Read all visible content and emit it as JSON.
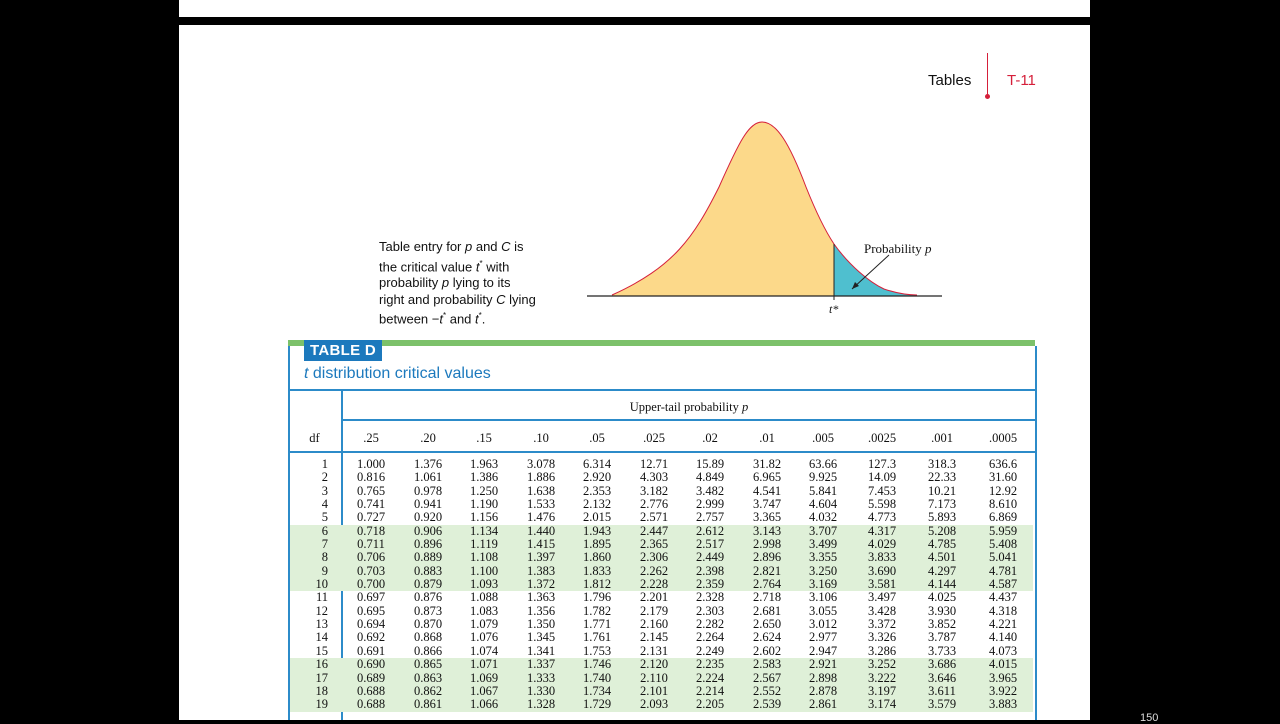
{
  "header": {
    "section": "Tables",
    "page_number": "T-11"
  },
  "caption": {
    "l1a": "Table entry for ",
    "l1p": "p",
    "l1b": " and ",
    "l1c": "C",
    "l1d": " is",
    "l2a": "the critical value ",
    "l2t": "t",
    "l2s": "*",
    "l2b": " with",
    "l3a": "probability ",
    "l3p": "p",
    "l3b": " lying to its",
    "l4a": "right and probability ",
    "l4c": "C",
    "l4b": " lying",
    "l5a": "between −",
    "l5t1": "t",
    "l5s1": "*",
    "l5b": " and ",
    "l5t2": "t",
    "l5s2": "*",
    "l5c": "."
  },
  "figure": {
    "prob_label": "Probability ",
    "prob_var": "p",
    "tstar": "t*"
  },
  "table": {
    "label": "TABLE D",
    "subtitle_var": "t",
    "subtitle": " distribution critical values",
    "upper_label": "Upper-tail probability ",
    "upper_var": "p",
    "df_header": "df",
    "columns": [
      ".25",
      ".20",
      ".15",
      ".10",
      ".05",
      ".025",
      ".02",
      ".01",
      ".005",
      ".0025",
      ".001",
      ".0005"
    ],
    "rows": [
      {
        "df": "1",
        "v": [
          "1.000",
          "1.376",
          "1.963",
          "3.078",
          "6.314",
          "12.71",
          "15.89",
          "31.82",
          "63.66",
          "127.3",
          "318.3",
          "636.6"
        ]
      },
      {
        "df": "2",
        "v": [
          "0.816",
          "1.061",
          "1.386",
          "1.886",
          "2.920",
          "4.303",
          "4.849",
          "6.965",
          "9.925",
          "14.09",
          "22.33",
          "31.60"
        ]
      },
      {
        "df": "3",
        "v": [
          "0.765",
          "0.978",
          "1.250",
          "1.638",
          "2.353",
          "3.182",
          "3.482",
          "4.541",
          "5.841",
          "7.453",
          "10.21",
          "12.92"
        ]
      },
      {
        "df": "4",
        "v": [
          "0.741",
          "0.941",
          "1.190",
          "1.533",
          "2.132",
          "2.776",
          "2.999",
          "3.747",
          "4.604",
          "5.598",
          "7.173",
          "8.610"
        ]
      },
      {
        "df": "5",
        "v": [
          "0.727",
          "0.920",
          "1.156",
          "1.476",
          "2.015",
          "2.571",
          "2.757",
          "3.365",
          "4.032",
          "4.773",
          "5.893",
          "6.869"
        ]
      },
      {
        "df": "6",
        "v": [
          "0.718",
          "0.906",
          "1.134",
          "1.440",
          "1.943",
          "2.447",
          "2.612",
          "3.143",
          "3.707",
          "4.317",
          "5.208",
          "5.959"
        ]
      },
      {
        "df": "7",
        "v": [
          "0.711",
          "0.896",
          "1.119",
          "1.415",
          "1.895",
          "2.365",
          "2.517",
          "2.998",
          "3.499",
          "4.029",
          "4.785",
          "5.408"
        ]
      },
      {
        "df": "8",
        "v": [
          "0.706",
          "0.889",
          "1.108",
          "1.397",
          "1.860",
          "2.306",
          "2.449",
          "2.896",
          "3.355",
          "3.833",
          "4.501",
          "5.041"
        ]
      },
      {
        "df": "9",
        "v": [
          "0.703",
          "0.883",
          "1.100",
          "1.383",
          "1.833",
          "2.262",
          "2.398",
          "2.821",
          "3.250",
          "3.690",
          "4.297",
          "4.781"
        ]
      },
      {
        "df": "10",
        "v": [
          "0.700",
          "0.879",
          "1.093",
          "1.372",
          "1.812",
          "2.228",
          "2.359",
          "2.764",
          "3.169",
          "3.581",
          "4.144",
          "4.587"
        ]
      },
      {
        "df": "11",
        "v": [
          "0.697",
          "0.876",
          "1.088",
          "1.363",
          "1.796",
          "2.201",
          "2.328",
          "2.718",
          "3.106",
          "3.497",
          "4.025",
          "4.437"
        ]
      },
      {
        "df": "12",
        "v": [
          "0.695",
          "0.873",
          "1.083",
          "1.356",
          "1.782",
          "2.179",
          "2.303",
          "2.681",
          "3.055",
          "3.428",
          "3.930",
          "4.318"
        ]
      },
      {
        "df": "13",
        "v": [
          "0.694",
          "0.870",
          "1.079",
          "1.350",
          "1.771",
          "2.160",
          "2.282",
          "2.650",
          "3.012",
          "3.372",
          "3.852",
          "4.221"
        ]
      },
      {
        "df": "14",
        "v": [
          "0.692",
          "0.868",
          "1.076",
          "1.345",
          "1.761",
          "2.145",
          "2.264",
          "2.624",
          "2.977",
          "3.326",
          "3.787",
          "4.140"
        ]
      },
      {
        "df": "15",
        "v": [
          "0.691",
          "0.866",
          "1.074",
          "1.341",
          "1.753",
          "2.131",
          "2.249",
          "2.602",
          "2.947",
          "3.286",
          "3.733",
          "4.073"
        ]
      },
      {
        "df": "16",
        "v": [
          "0.690",
          "0.865",
          "1.071",
          "1.337",
          "1.746",
          "2.120",
          "2.235",
          "2.583",
          "2.921",
          "3.252",
          "3.686",
          "4.015"
        ]
      },
      {
        "df": "17",
        "v": [
          "0.689",
          "0.863",
          "1.069",
          "1.333",
          "1.740",
          "2.110",
          "2.224",
          "2.567",
          "2.898",
          "3.222",
          "3.646",
          "3.965"
        ]
      },
      {
        "df": "18",
        "v": [
          "0.688",
          "0.862",
          "1.067",
          "1.330",
          "1.734",
          "2.101",
          "2.214",
          "2.552",
          "2.878",
          "3.197",
          "3.611",
          "3.922"
        ]
      },
      {
        "df": "19",
        "v": [
          "0.688",
          "0.861",
          "1.066",
          "1.328",
          "1.729",
          "2.093",
          "2.205",
          "2.539",
          "2.861",
          "3.174",
          "3.579",
          "3.883"
        ]
      }
    ]
  },
  "overlay": {
    "corner": "150"
  },
  "colors": {
    "accent": "#1c79bd",
    "green": "#7cc16a",
    "red": "#d51f3a",
    "curve_fill": "#fcd98a",
    "tail_fill": "#4fbfcf"
  }
}
